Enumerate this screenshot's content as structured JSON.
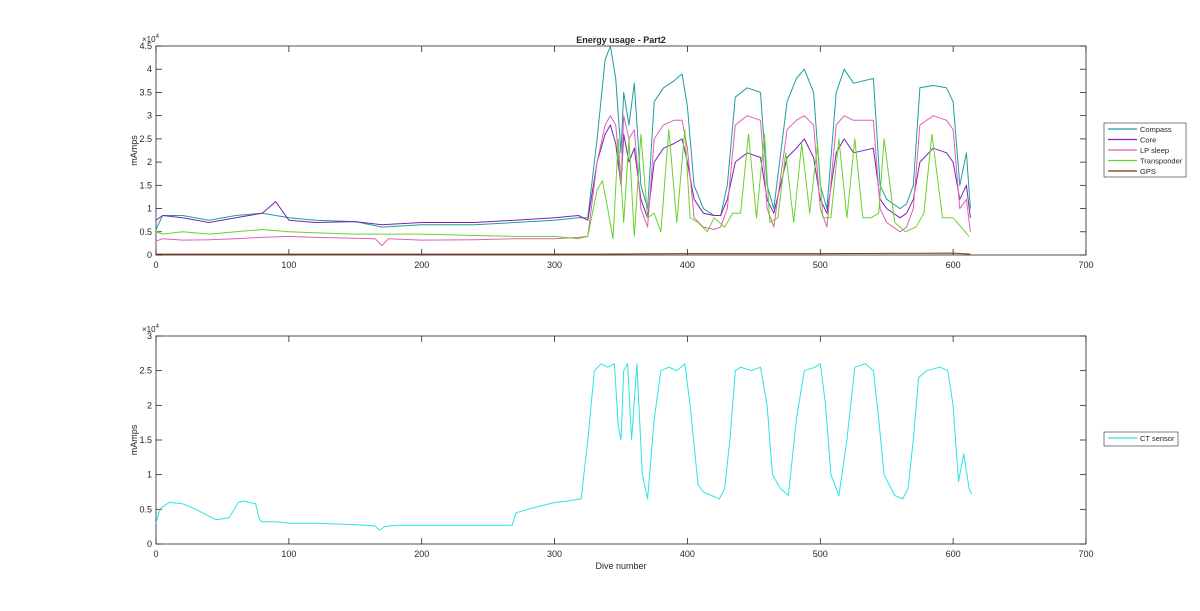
{
  "chart_data": [
    {
      "type": "line",
      "title": "Energy usage - Part2",
      "xlabel": "",
      "ylabel": "mAmps",
      "exponent_label": "×10^4",
      "exponent_base": "×10",
      "exponent_power": "4",
      "xlim": [
        0,
        700
      ],
      "ylim": [
        0,
        4.5
      ],
      "x_ticks": [
        0,
        100,
        200,
        300,
        400,
        500,
        600,
        700
      ],
      "y_ticks": [
        0,
        0.5,
        1,
        1.5,
        2,
        2.5,
        3,
        3.5,
        4,
        4.5
      ],
      "x_tick_labels": [
        "0",
        "100",
        "200",
        "300",
        "400",
        "500",
        "600",
        "700"
      ],
      "y_tick_labels": [
        "0",
        "0.5",
        "1",
        "1.5",
        "2",
        "2.5",
        "3",
        "3.5",
        "4",
        "4.5"
      ],
      "grid": false,
      "legend_position": "outside-right",
      "series": [
        {
          "name": "Compass",
          "color": "#1f9e9c",
          "x": [
            0,
            5,
            20,
            40,
            60,
            80,
            90,
            100,
            120,
            150,
            170,
            200,
            240,
            270,
            300,
            318,
            325,
            332,
            338,
            342,
            346,
            350,
            352,
            356,
            360,
            365,
            370,
            375,
            382,
            390,
            396,
            400,
            405,
            412,
            420,
            425,
            430,
            436,
            445,
            455,
            460,
            465,
            475,
            482,
            488,
            495,
            500,
            505,
            512,
            518,
            525,
            540,
            545,
            550,
            560,
            565,
            570,
            575,
            585,
            595,
            600,
            605,
            610,
            613
          ],
          "y": [
            0.55,
            0.85,
            0.85,
            0.75,
            0.85,
            0.9,
            0.85,
            0.8,
            0.75,
            0.72,
            0.6,
            0.65,
            0.65,
            0.7,
            0.75,
            0.8,
            0.8,
            2.5,
            4.2,
            4.5,
            3.8,
            2.2,
            3.5,
            2.8,
            3.7,
            1.5,
            1.0,
            3.3,
            3.6,
            3.75,
            3.9,
            3.2,
            1.5,
            1.0,
            0.85,
            0.85,
            1.5,
            3.4,
            3.6,
            3.5,
            1.5,
            1.0,
            3.3,
            3.8,
            4.0,
            3.5,
            1.5,
            1.0,
            3.5,
            4.0,
            3.7,
            3.8,
            1.5,
            1.2,
            1.0,
            1.1,
            1.5,
            3.6,
            3.65,
            3.6,
            3.3,
            1.5,
            2.2,
            1.0
          ]
        },
        {
          "name": "Core",
          "color": "#7b22b5",
          "x": [
            0,
            5,
            20,
            40,
            60,
            80,
            90,
            100,
            120,
            150,
            170,
            200,
            240,
            270,
            300,
            318,
            325,
            332,
            338,
            342,
            346,
            350,
            352,
            356,
            360,
            365,
            370,
            375,
            382,
            390,
            396,
            400,
            405,
            412,
            420,
            425,
            430,
            436,
            445,
            455,
            460,
            465,
            475,
            482,
            488,
            495,
            500,
            505,
            512,
            518,
            525,
            540,
            545,
            550,
            560,
            565,
            570,
            575,
            585,
            595,
            600,
            605,
            610,
            613
          ],
          "y": [
            0.75,
            0.85,
            0.8,
            0.7,
            0.8,
            0.9,
            1.15,
            0.75,
            0.7,
            0.72,
            0.65,
            0.7,
            0.7,
            0.75,
            0.8,
            0.85,
            0.75,
            2.0,
            2.6,
            2.8,
            2.4,
            1.5,
            2.6,
            2.0,
            2.3,
            1.2,
            0.8,
            2.0,
            2.3,
            2.4,
            2.5,
            2.0,
            1.2,
            0.9,
            0.85,
            0.85,
            1.2,
            2.0,
            2.2,
            2.1,
            1.2,
            0.9,
            2.1,
            2.3,
            2.5,
            2.1,
            1.2,
            0.9,
            2.2,
            2.5,
            2.2,
            2.3,
            1.2,
            1.0,
            0.8,
            0.9,
            1.2,
            2.0,
            2.3,
            2.2,
            2.0,
            1.2,
            1.5,
            0.8
          ]
        },
        {
          "name": "LP sleep",
          "color": "#e05fb8",
          "x": [
            0,
            5,
            20,
            40,
            60,
            80,
            100,
            120,
            150,
            165,
            170,
            175,
            200,
            240,
            270,
            300,
            318,
            325,
            332,
            338,
            342,
            346,
            350,
            352,
            356,
            360,
            365,
            370,
            375,
            382,
            390,
            396,
            400,
            405,
            412,
            420,
            425,
            430,
            436,
            445,
            455,
            460,
            465,
            475,
            482,
            488,
            495,
            500,
            505,
            512,
            518,
            525,
            540,
            545,
            550,
            560,
            565,
            570,
            575,
            585,
            595,
            600,
            605,
            610,
            613
          ],
          "y": [
            0.3,
            0.35,
            0.32,
            0.33,
            0.35,
            0.38,
            0.4,
            0.38,
            0.36,
            0.35,
            0.2,
            0.35,
            0.32,
            0.33,
            0.35,
            0.35,
            0.38,
            0.4,
            2.0,
            2.8,
            3.0,
            2.8,
            1.5,
            3.0,
            2.5,
            2.7,
            1.0,
            0.6,
            2.5,
            2.8,
            2.9,
            2.9,
            2.3,
            0.8,
            0.6,
            0.55,
            0.6,
            1.0,
            2.8,
            3.0,
            2.9,
            1.0,
            0.6,
            2.7,
            2.9,
            3.0,
            2.8,
            1.0,
            0.6,
            2.8,
            3.0,
            2.9,
            2.9,
            1.0,
            0.7,
            0.5,
            0.6,
            1.0,
            2.8,
            3.0,
            2.9,
            2.7,
            1.0,
            1.2,
            0.5
          ]
        },
        {
          "name": "Transponder",
          "color": "#6ad12b",
          "x": [
            0,
            5,
            20,
            40,
            60,
            80,
            100,
            120,
            150,
            200,
            240,
            270,
            300,
            318,
            325,
            332,
            336,
            340,
            344,
            348,
            352,
            356,
            360,
            365,
            370,
            375,
            380,
            386,
            392,
            398,
            402,
            408,
            415,
            420,
            428,
            434,
            440,
            446,
            452,
            458,
            462,
            468,
            474,
            480,
            486,
            492,
            498,
            502,
            508,
            514,
            520,
            526,
            532,
            538,
            544,
            548,
            556,
            564,
            572,
            578,
            584,
            592,
            600,
            606,
            612
          ],
          "y": [
            0.5,
            0.45,
            0.5,
            0.45,
            0.5,
            0.55,
            0.5,
            0.48,
            0.45,
            0.45,
            0.42,
            0.4,
            0.4,
            0.35,
            0.4,
            1.4,
            1.6,
            1.0,
            0.35,
            2.5,
            0.7,
            2.5,
            0.4,
            2.6,
            0.8,
            0.9,
            0.5,
            2.7,
            0.7,
            2.7,
            0.8,
            0.7,
            0.5,
            0.8,
            0.6,
            0.9,
            0.9,
            2.6,
            0.8,
            2.6,
            0.7,
            0.8,
            2.2,
            0.7,
            2.4,
            0.9,
            2.4,
            0.8,
            0.8,
            2.5,
            0.8,
            2.5,
            0.8,
            0.8,
            0.9,
            2.5,
            0.7,
            0.5,
            0.6,
            0.9,
            2.6,
            0.8,
            0.8,
            0.6,
            0.4
          ]
        },
        {
          "name": "GPS",
          "color": "#8a3110",
          "x": [
            0,
            100,
            200,
            300,
            330,
            400,
            500,
            600,
            613
          ],
          "y": [
            0.02,
            0.02,
            0.02,
            0.02,
            0.02,
            0.03,
            0.03,
            0.04,
            0.02
          ]
        }
      ]
    },
    {
      "type": "line",
      "title": "",
      "xlabel": "Dive number",
      "ylabel": "mAmps",
      "exponent_label": "×10^4",
      "exponent_base": "×10",
      "exponent_power": "4",
      "xlim": [
        0,
        700
      ],
      "ylim": [
        0,
        3
      ],
      "x_ticks": [
        0,
        100,
        200,
        300,
        400,
        500,
        600,
        700
      ],
      "y_ticks": [
        0,
        0.5,
        1,
        1.5,
        2,
        2.5,
        3
      ],
      "x_tick_labels": [
        "0",
        "100",
        "200",
        "300",
        "400",
        "500",
        "600",
        "700"
      ],
      "y_tick_labels": [
        "0",
        "0.5",
        "1",
        "1.5",
        "2",
        "2.5",
        "3"
      ],
      "grid": false,
      "legend_position": "outside-right",
      "series": [
        {
          "name": "CT sensor",
          "color": "#2de3e3",
          "x": [
            0,
            3,
            6,
            10,
            20,
            30,
            40,
            45,
            55,
            62,
            66,
            70,
            75,
            78,
            80,
            90,
            100,
            120,
            150,
            165,
            168,
            172,
            180,
            200,
            230,
            250,
            268,
            271,
            280,
            290,
            300,
            310,
            320,
            325,
            330,
            335,
            340,
            345,
            348,
            350,
            352,
            355,
            358,
            362,
            366,
            370,
            375,
            380,
            386,
            392,
            398,
            402,
            408,
            412,
            418,
            424,
            428,
            432,
            436,
            440,
            448,
            455,
            460,
            464,
            470,
            476,
            482,
            488,
            496,
            500,
            504,
            508,
            514,
            520,
            526,
            534,
            540,
            544,
            548,
            556,
            562,
            566,
            570,
            574,
            580,
            590,
            596,
            600,
            604,
            608,
            612,
            614
          ],
          "y": [
            0.3,
            0.5,
            0.55,
            0.6,
            0.58,
            0.5,
            0.4,
            0.35,
            0.38,
            0.6,
            0.62,
            0.6,
            0.58,
            0.35,
            0.32,
            0.32,
            0.3,
            0.3,
            0.28,
            0.26,
            0.2,
            0.25,
            0.27,
            0.27,
            0.27,
            0.27,
            0.27,
            0.45,
            0.5,
            0.55,
            0.6,
            0.62,
            0.65,
            1.5,
            2.5,
            2.6,
            2.55,
            2.6,
            1.7,
            1.5,
            2.5,
            2.6,
            1.5,
            2.6,
            1.0,
            0.65,
            1.8,
            2.5,
            2.55,
            2.5,
            2.6,
            2.0,
            0.85,
            0.75,
            0.7,
            0.65,
            0.8,
            1.5,
            2.5,
            2.55,
            2.5,
            2.55,
            2.0,
            1.0,
            0.8,
            0.7,
            1.8,
            2.5,
            2.55,
            2.6,
            2.0,
            1.0,
            0.7,
            1.5,
            2.55,
            2.6,
            2.5,
            1.8,
            1.0,
            0.7,
            0.65,
            0.8,
            1.5,
            2.4,
            2.5,
            2.55,
            2.5,
            2.0,
            0.9,
            1.3,
            0.8,
            0.72
          ]
        }
      ]
    }
  ]
}
